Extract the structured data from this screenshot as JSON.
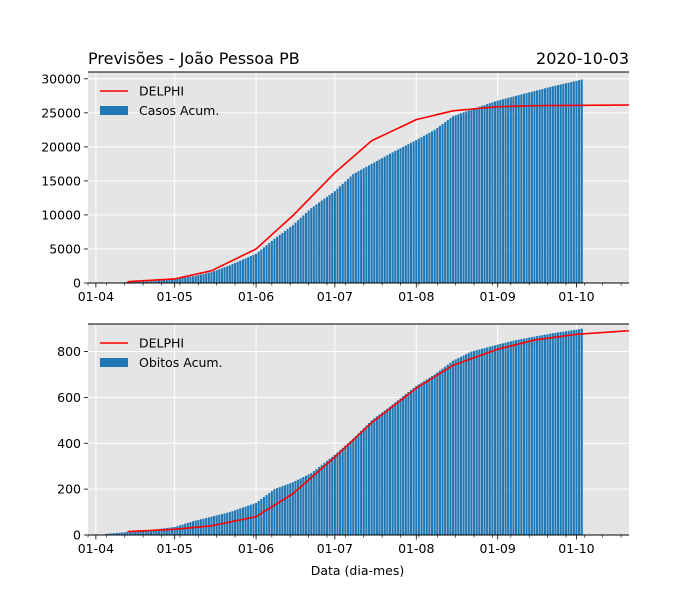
{
  "header": {
    "title": "Previsões - João Pessoa PB",
    "date": "2020-10-03"
  },
  "colors": {
    "bars": "#1f77b4",
    "model": "#ff0000",
    "axes_bg": "#e5e5e5",
    "grid": "#ffffff"
  },
  "chart_data": [
    {
      "type": "bar",
      "xlabel": "",
      "ylabel": "",
      "ylim": [
        0,
        31000
      ],
      "yticks": [
        0,
        5000,
        10000,
        15000,
        20000,
        25000,
        30000
      ],
      "xticks": [
        "01-04",
        "01-05",
        "01-06",
        "01-07",
        "01-08",
        "01-09",
        "01-10"
      ],
      "grid": true,
      "legend": "top-left",
      "series": [
        {
          "name": "DELPHI",
          "kind": "line",
          "x": [
            "2020-04-13",
            "2020-05-01",
            "2020-05-15",
            "2020-06-01",
            "2020-06-15",
            "2020-07-01",
            "2020-07-15",
            "2020-08-01",
            "2020-08-15",
            "2020-09-01",
            "2020-09-15",
            "2020-10-01",
            "2020-10-20"
          ],
          "values": [
            200,
            600,
            1800,
            5000,
            9900,
            16200,
            20900,
            24000,
            25300,
            25900,
            26050,
            26100,
            26150
          ]
        },
        {
          "name": "Casos Acum.",
          "kind": "bar",
          "x": [
            "2020-04-08",
            "2020-04-15",
            "2020-04-22",
            "2020-05-01",
            "2020-05-08",
            "2020-05-15",
            "2020-05-22",
            "2020-06-01",
            "2020-06-08",
            "2020-06-15",
            "2020-06-22",
            "2020-07-01",
            "2020-07-08",
            "2020-07-15",
            "2020-07-22",
            "2020-08-01",
            "2020-08-08",
            "2020-08-15",
            "2020-08-22",
            "2020-09-01",
            "2020-09-08",
            "2020-09-15",
            "2020-09-22",
            "2020-10-01",
            "2020-10-03"
          ],
          "values": [
            50,
            150,
            250,
            600,
            1000,
            1600,
            2600,
            4300,
            6500,
            8500,
            11000,
            13500,
            16000,
            17500,
            19000,
            21000,
            22500,
            24500,
            25500,
            26800,
            27500,
            28200,
            28900,
            29700,
            29900
          ]
        }
      ]
    },
    {
      "type": "bar",
      "xlabel": "Data (dia-mes)",
      "ylabel": "",
      "ylim": [
        0,
        920
      ],
      "yticks": [
        0,
        200,
        400,
        600,
        800
      ],
      "xticks": [
        "01-04",
        "01-05",
        "01-06",
        "01-07",
        "01-08",
        "01-09",
        "01-10"
      ],
      "grid": true,
      "legend": "top-left",
      "series": [
        {
          "name": "DELPHI",
          "kind": "line",
          "x": [
            "2020-04-13",
            "2020-05-01",
            "2020-05-15",
            "2020-06-01",
            "2020-06-15",
            "2020-07-01",
            "2020-07-15",
            "2020-08-01",
            "2020-08-15",
            "2020-09-01",
            "2020-09-15",
            "2020-10-01",
            "2020-10-20"
          ],
          "values": [
            15,
            25,
            40,
            80,
            180,
            340,
            490,
            640,
            740,
            810,
            850,
            875,
            890
          ]
        },
        {
          "name": "Obitos Acum.",
          "kind": "bar",
          "x": [
            "2020-04-05",
            "2020-04-15",
            "2020-04-22",
            "2020-05-01",
            "2020-05-08",
            "2020-05-15",
            "2020-05-22",
            "2020-06-01",
            "2020-06-08",
            "2020-06-15",
            "2020-06-22",
            "2020-07-01",
            "2020-07-08",
            "2020-07-15",
            "2020-07-22",
            "2020-08-01",
            "2020-08-08",
            "2020-08-15",
            "2020-08-22",
            "2020-09-01",
            "2020-09-08",
            "2020-09-15",
            "2020-09-22",
            "2020-10-01",
            "2020-10-03"
          ],
          "values": [
            5,
            15,
            22,
            35,
            60,
            80,
            100,
            140,
            200,
            230,
            270,
            350,
            420,
            500,
            560,
            650,
            700,
            760,
            800,
            830,
            850,
            865,
            880,
            895,
            900
          ]
        }
      ]
    }
  ]
}
